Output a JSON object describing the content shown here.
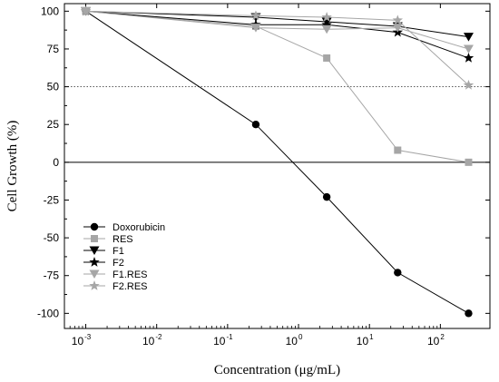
{
  "chart_data": {
    "type": "line",
    "title": "",
    "xlabel": "Concentration (μg/mL)",
    "ylabel": "Cell Growth (%)",
    "xscale": "log",
    "xlim": [
      0.0005,
      500
    ],
    "ylim": [
      -110,
      105
    ],
    "x_ticks": [
      {
        "base": "10",
        "exp": "-3"
      },
      {
        "base": "10",
        "exp": "-2"
      },
      {
        "base": "10",
        "exp": "-1"
      },
      {
        "base": "10",
        "exp": "0"
      },
      {
        "base": "10",
        "exp": "1"
      },
      {
        "base": "10",
        "exp": "2"
      }
    ],
    "x_tick_values": [
      0.001,
      0.01,
      0.1,
      1,
      10,
      100
    ],
    "y_ticks": [
      "100",
      "75",
      "50",
      "25",
      "0",
      "-25",
      "-50",
      "-75",
      "-100"
    ],
    "y_tick_values": [
      100,
      75,
      50,
      25,
      0,
      -25,
      -50,
      -75,
      -100
    ],
    "reference_lines": [
      {
        "y": 50,
        "style": "dotted"
      },
      {
        "y": 0,
        "style": "solid"
      }
    ],
    "legend_position": "bottom-left",
    "grid": false,
    "series": [
      {
        "name": "Doxorubicin",
        "marker": "circle",
        "color": "#000000",
        "x": [
          0.001,
          0.25,
          2.5,
          25,
          250
        ],
        "y": [
          100,
          25,
          -23,
          -73,
          -100
        ]
      },
      {
        "name": "RES",
        "marker": "square",
        "color": "#a6a6a6",
        "x": [
          0.001,
          0.25,
          2.5,
          25,
          250
        ],
        "y": [
          100,
          90,
          69,
          8,
          0
        ]
      },
      {
        "name": "F1",
        "marker": "triangle-down",
        "color": "#000000",
        "x": [
          0.001,
          0.25,
          2.5,
          25,
          250
        ],
        "y": [
          100,
          96,
          93,
          90,
          83
        ]
      },
      {
        "name": "F2",
        "marker": "star",
        "color": "#000000",
        "x": [
          0.001,
          0.25,
          2.5,
          25,
          250
        ],
        "y": [
          100,
          91,
          91,
          86,
          69
        ]
      },
      {
        "name": "F1.RES",
        "marker": "triangle-down",
        "color": "#a6a6a6",
        "x": [
          0.001,
          0.25,
          2.5,
          25,
          250
        ],
        "y": [
          100,
          89,
          88,
          89,
          75
        ]
      },
      {
        "name": "F2.RES",
        "marker": "star",
        "color": "#a6a6a6",
        "x": [
          0.001,
          0.25,
          2.5,
          25,
          250
        ],
        "y": [
          100,
          97,
          96,
          94,
          51
        ]
      }
    ]
  }
}
